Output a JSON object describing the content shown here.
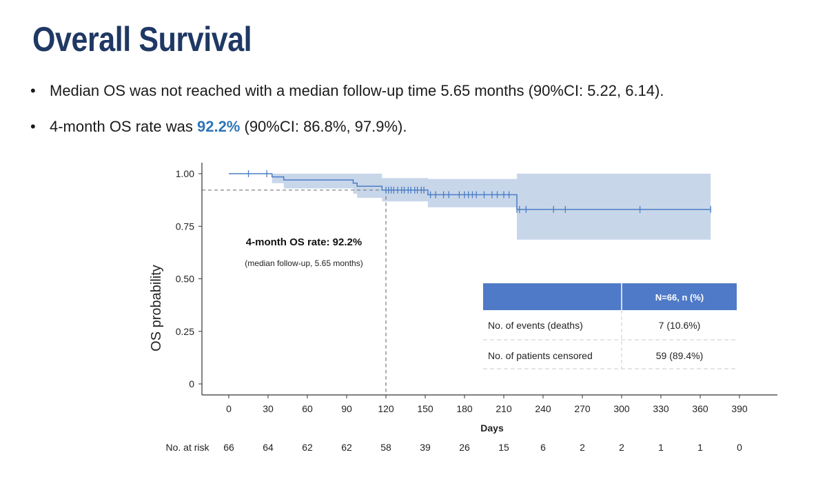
{
  "slide": {
    "title": "Overall Survival",
    "bullets": [
      {
        "dot": "•",
        "text": "Median OS was not reached with a median follow-up time 5.65 months (90%CI: 5.22, 6.14)."
      },
      {
        "dot": "•",
        "pre": "4-month OS rate was ",
        "highlight": "92.2%",
        "post": " (90%CI: 86.8%, 97.9%)."
      }
    ]
  },
  "chart_data": {
    "type": "line",
    "subtype": "kaplan-meier",
    "xlabel": "Days",
    "ylabel": "OS probability",
    "xlim": [
      0,
      390
    ],
    "ylim": [
      0,
      1
    ],
    "x_ticks": [
      0,
      30,
      60,
      90,
      120,
      150,
      180,
      210,
      240,
      270,
      300,
      330,
      360,
      390
    ],
    "y_ticks": [
      {
        "value": 0,
        "label": "0"
      },
      {
        "value": 0.25,
        "label": "0.25"
      },
      {
        "value": 0.5,
        "label": "0.50"
      },
      {
        "value": 0.75,
        "label": "0.75"
      },
      {
        "value": 1,
        "label": "1.00"
      }
    ],
    "series": [
      {
        "color": "#4a7dc4",
        "ci_color": "#c8d6ea",
        "steps": [
          {
            "x": 0,
            "y": 1.0,
            "lo": 1.0,
            "hi": 1.0
          },
          {
            "x": 33,
            "y": 0.985,
            "lo": 0.955,
            "hi": 1.0
          },
          {
            "x": 42,
            "y": 0.97,
            "lo": 0.93,
            "hi": 1.0
          },
          {
            "x": 95,
            "y": 0.955,
            "lo": 0.905,
            "hi": 1.0
          },
          {
            "x": 98,
            "y": 0.94,
            "lo": 0.885,
            "hi": 1.0
          },
          {
            "x": 117,
            "y": 0.922,
            "lo": 0.868,
            "hi": 0.979
          },
          {
            "x": 152,
            "y": 0.9,
            "lo": 0.84,
            "hi": 0.975
          },
          {
            "x": 220,
            "y": 0.83,
            "lo": 0.686,
            "hi": 1.0
          },
          {
            "x": 368,
            "y": 0.83,
            "lo": 0.686,
            "hi": 1.0
          }
        ],
        "censored": [
          15,
          29,
          120,
          122,
          124,
          126,
          129,
          132,
          134,
          137,
          139,
          142,
          144,
          147,
          149,
          154,
          158,
          164,
          168,
          176,
          180,
          183,
          186,
          189,
          195,
          201,
          205,
          210,
          214,
          220,
          222,
          227,
          248,
          257,
          314,
          368
        ]
      }
    ],
    "reference": {
      "x": 120,
      "y": 0.922
    },
    "annotation": {
      "title": "4-month OS rate: 92.2%",
      "subtitle": "(median follow-up, 5.65 months)"
    },
    "summary_table": {
      "header": [
        "",
        "N=66, n (%)"
      ],
      "rows": [
        [
          "No. of events (deaths)",
          "7 (10.6%)"
        ],
        [
          "No. of patients censored",
          "59  (89.4%)"
        ]
      ],
      "header_color": "#4f7ac7"
    },
    "risk_table": {
      "label": "No. at risk",
      "values": [
        66,
        64,
        62,
        62,
        58,
        39,
        26,
        15,
        6,
        2,
        2,
        1,
        1,
        0
      ]
    }
  }
}
